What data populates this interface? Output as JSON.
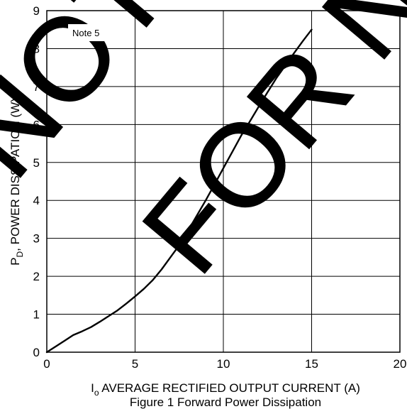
{
  "chart_data": {
    "type": "line",
    "title": "Figure 1 Forward Power Dissipation",
    "xlabel": {
      "main": "I",
      "sub": "o",
      "rest": " AVERAGE RECTIFIED OUTPUT CURRENT (A)"
    },
    "ylabel": {
      "main": "P",
      "sub": "D",
      "rest": ", POWER DISSIPATION (W)"
    },
    "xlim": [
      0,
      20
    ],
    "ylim": [
      0,
      9
    ],
    "x_ticks": [
      "0",
      "5",
      "10",
      "15",
      "20"
    ],
    "y_ticks": [
      "0",
      "1",
      "2",
      "3",
      "4",
      "5",
      "6",
      "7",
      "8",
      "9"
    ],
    "grid": true,
    "annotation": "Note 5",
    "series": [
      {
        "color": "#000000",
        "x": [
          0,
          0.5,
          1,
          1.5,
          2,
          2.5,
          3,
          3.5,
          4,
          4.5,
          5,
          5.5,
          6,
          6.5,
          7,
          7.5,
          8,
          8.5,
          9,
          9.5,
          10,
          10.5,
          11,
          11.5,
          12,
          12.5,
          13,
          13.5,
          14,
          14.5,
          15
        ],
        "y": [
          0,
          0.15,
          0.3,
          0.45,
          0.55,
          0.66,
          0.8,
          0.95,
          1.1,
          1.28,
          1.47,
          1.67,
          1.9,
          2.18,
          2.5,
          2.82,
          3.2,
          3.6,
          4.0,
          4.42,
          4.85,
          5.27,
          5.7,
          6.08,
          6.47,
          6.85,
          7.22,
          7.55,
          7.88,
          8.2,
          8.5
        ]
      }
    ]
  },
  "watermark": {
    "line1": "NOT RECOMMENDED",
    "line2": "FOR NEW DESIGN"
  }
}
